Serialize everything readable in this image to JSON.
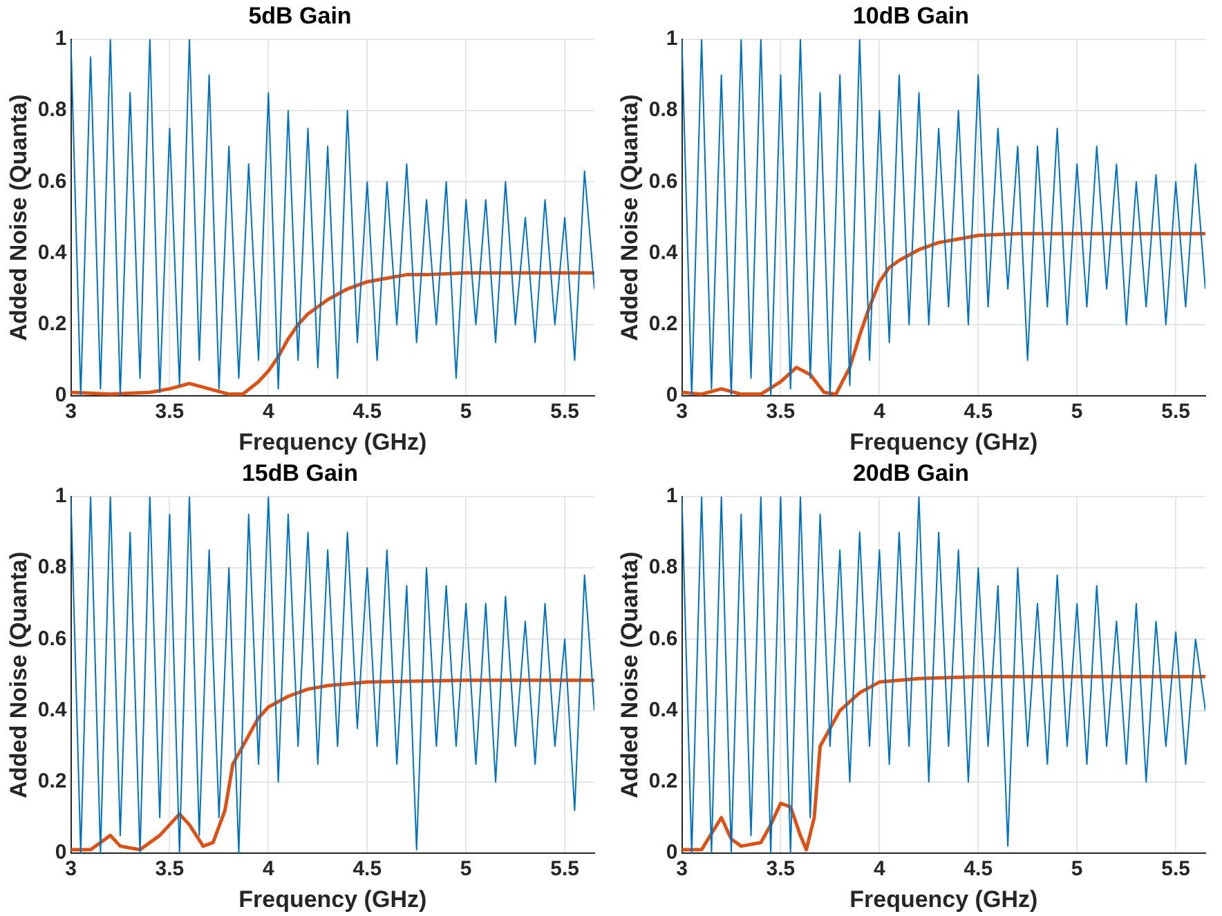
{
  "chart_data": [
    {
      "type": "line",
      "title": "5dB Gain",
      "xlabel": "Frequency (GHz)",
      "ylabel": "Added Noise (Quanta)",
      "xlim": [
        3,
        5.65
      ],
      "ylim": [
        0,
        1
      ],
      "xticks": [
        3,
        3.5,
        4,
        4.5,
        5,
        5.5
      ],
      "yticks": [
        0,
        0.2,
        0.4,
        0.6,
        0.8,
        1
      ],
      "grid": true,
      "legend": false,
      "x": [
        3,
        3.05,
        3.1,
        3.15,
        3.2,
        3.25,
        3.3,
        3.35,
        3.4,
        3.45,
        3.5,
        3.55,
        3.6,
        3.65,
        3.7,
        3.75,
        3.8,
        3.85,
        3.9,
        3.95,
        4,
        4.05,
        4.1,
        4.15,
        4.2,
        4.25,
        4.3,
        4.35,
        4.4,
        4.45,
        4.5,
        4.55,
        4.6,
        4.65,
        4.7,
        4.75,
        4.8,
        4.85,
        4.9,
        4.95,
        5,
        5.05,
        5.1,
        5.15,
        5.2,
        5.25,
        5.3,
        5.35,
        5.4,
        5.45,
        5.5,
        5.55,
        5.6,
        5.65
      ],
      "series": [
        {
          "type": "line",
          "color": "#0072bd",
          "values": [
            1,
            0,
            0.95,
            0.02,
            1,
            0,
            0.85,
            0.05,
            1,
            0.01,
            0.75,
            0.03,
            1,
            0.1,
            0.9,
            0.02,
            0.7,
            0.05,
            0.65,
            0.1,
            0.85,
            0.02,
            0.8,
            0.1,
            0.75,
            0.08,
            0.7,
            0.05,
            0.8,
            0.15,
            0.6,
            0.1,
            0.6,
            0.2,
            0.65,
            0.15,
            0.55,
            0.2,
            0.6,
            0.05,
            0.55,
            0.2,
            0.55,
            0.15,
            0.6,
            0.2,
            0.5,
            0.15,
            0.55,
            0.2,
            0.5,
            0.1,
            0.63,
            0.3
          ]
        },
        {
          "type": "line",
          "color": "#d95319",
          "x": [
            3,
            3.2,
            3.4,
            3.5,
            3.6,
            3.7,
            3.8,
            3.87,
            3.95,
            4,
            4.05,
            4.1,
            4.15,
            4.2,
            4.3,
            4.4,
            4.5,
            4.6,
            4.7,
            4.8,
            5,
            5.2,
            5.4,
            5.65
          ],
          "values": [
            0.01,
            0.005,
            0.01,
            0.02,
            0.035,
            0.02,
            0.005,
            0.005,
            0.04,
            0.07,
            0.11,
            0.16,
            0.2,
            0.23,
            0.27,
            0.3,
            0.32,
            0.33,
            0.34,
            0.34,
            0.345,
            0.345,
            0.345,
            0.345
          ]
        }
      ]
    },
    {
      "type": "line",
      "title": "10dB Gain",
      "xlabel": "Frequency (GHz)",
      "ylabel": "Added Noise (Quanta)",
      "xlim": [
        3,
        5.65
      ],
      "ylim": [
        0,
        1
      ],
      "xticks": [
        3,
        3.5,
        4,
        4.5,
        5,
        5.5
      ],
      "yticks": [
        0,
        0.2,
        0.4,
        0.6,
        0.8,
        1
      ],
      "grid": true,
      "legend": false,
      "x": [
        3,
        3.05,
        3.1,
        3.15,
        3.2,
        3.25,
        3.3,
        3.35,
        3.4,
        3.45,
        3.5,
        3.55,
        3.6,
        3.65,
        3.7,
        3.75,
        3.8,
        3.85,
        3.9,
        3.95,
        4,
        4.05,
        4.1,
        4.15,
        4.2,
        4.25,
        4.3,
        4.35,
        4.4,
        4.45,
        4.5,
        4.55,
        4.6,
        4.65,
        4.7,
        4.75,
        4.8,
        4.85,
        4.9,
        4.95,
        5,
        5.05,
        5.1,
        5.15,
        5.2,
        5.25,
        5.3,
        5.35,
        5.4,
        5.45,
        5.5,
        5.55,
        5.6,
        5.65
      ],
      "series": [
        {
          "type": "line",
          "color": "#0072bd",
          "values": [
            1,
            0,
            1,
            0.02,
            0.9,
            0,
            1,
            0.05,
            1,
            0,
            0.9,
            0.02,
            1,
            0.05,
            0.85,
            0,
            0.9,
            0.03,
            1,
            0.1,
            0.8,
            0.15,
            0.9,
            0.2,
            0.85,
            0.2,
            0.75,
            0.25,
            0.8,
            0.2,
            0.9,
            0.25,
            0.75,
            0.3,
            0.7,
            0.1,
            0.7,
            0.25,
            0.75,
            0.2,
            0.65,
            0.25,
            0.7,
            0.3,
            0.65,
            0.2,
            0.6,
            0.25,
            0.62,
            0.2,
            0.6,
            0.25,
            0.65,
            0.3
          ]
        },
        {
          "type": "line",
          "color": "#d95319",
          "x": [
            3,
            3.1,
            3.2,
            3.3,
            3.4,
            3.5,
            3.58,
            3.65,
            3.72,
            3.78,
            3.85,
            3.9,
            3.95,
            4,
            4.05,
            4.1,
            4.2,
            4.3,
            4.4,
            4.5,
            4.7,
            5,
            5.3,
            5.65
          ],
          "values": [
            0.01,
            0.005,
            0.02,
            0.005,
            0.005,
            0.04,
            0.08,
            0.06,
            0.01,
            0.005,
            0.08,
            0.17,
            0.25,
            0.32,
            0.36,
            0.38,
            0.41,
            0.43,
            0.44,
            0.45,
            0.455,
            0.455,
            0.455,
            0.455
          ]
        }
      ]
    },
    {
      "type": "line",
      "title": "15dB Gain",
      "xlabel": "Frequency (GHz)",
      "ylabel": "Added Noise (Quanta)",
      "xlim": [
        3,
        5.65
      ],
      "ylim": [
        0,
        1
      ],
      "xticks": [
        3,
        3.5,
        4,
        4.5,
        5,
        5.5
      ],
      "yticks": [
        0,
        0.2,
        0.4,
        0.6,
        0.8,
        1
      ],
      "grid": true,
      "legend": false,
      "x": [
        3,
        3.05,
        3.1,
        3.15,
        3.2,
        3.25,
        3.3,
        3.35,
        3.4,
        3.45,
        3.5,
        3.55,
        3.6,
        3.65,
        3.7,
        3.75,
        3.8,
        3.85,
        3.9,
        3.95,
        4,
        4.05,
        4.1,
        4.15,
        4.2,
        4.25,
        4.3,
        4.35,
        4.4,
        4.45,
        4.5,
        4.55,
        4.6,
        4.65,
        4.7,
        4.75,
        4.8,
        4.85,
        4.9,
        4.95,
        5,
        5.05,
        5.1,
        5.15,
        5.2,
        5.25,
        5.3,
        5.35,
        5.4,
        5.45,
        5.5,
        5.55,
        5.6,
        5.65
      ],
      "series": [
        {
          "type": "line",
          "color": "#0072bd",
          "values": [
            1,
            0,
            1,
            0,
            1,
            0.05,
            0.9,
            0,
            1,
            0.1,
            0.95,
            0,
            1,
            0.05,
            0.85,
            0.1,
            0.8,
            0,
            0.95,
            0.25,
            1,
            0.2,
            0.95,
            0.3,
            0.9,
            0.25,
            0.85,
            0.3,
            0.9,
            0.35,
            0.8,
            0.3,
            0.85,
            0.25,
            0.75,
            0.01,
            0.8,
            0.3,
            0.75,
            0.3,
            0.7,
            0.25,
            0.7,
            0.2,
            0.72,
            0.3,
            0.65,
            0.25,
            0.7,
            0.3,
            0.6,
            0.12,
            0.78,
            0.4
          ]
        },
        {
          "type": "line",
          "color": "#d95319",
          "x": [
            3,
            3.1,
            3.2,
            3.25,
            3.35,
            3.45,
            3.55,
            3.6,
            3.67,
            3.72,
            3.78,
            3.82,
            3.9,
            3.95,
            4,
            4.1,
            4.2,
            4.3,
            4.5,
            5,
            5.65
          ],
          "values": [
            0.01,
            0.01,
            0.05,
            0.02,
            0.01,
            0.05,
            0.11,
            0.08,
            0.02,
            0.03,
            0.12,
            0.25,
            0.33,
            0.38,
            0.41,
            0.44,
            0.46,
            0.47,
            0.48,
            0.485,
            0.485
          ]
        }
      ]
    },
    {
      "type": "line",
      "title": "20dB Gain",
      "xlabel": "Frequency (GHz)",
      "ylabel": "Added Noise (Quanta)",
      "xlim": [
        3,
        5.65
      ],
      "ylim": [
        0,
        1
      ],
      "xticks": [
        3,
        3.5,
        4,
        4.5,
        5,
        5.5
      ],
      "yticks": [
        0,
        0.2,
        0.4,
        0.6,
        0.8,
        1
      ],
      "grid": true,
      "legend": false,
      "x": [
        3,
        3.05,
        3.1,
        3.15,
        3.2,
        3.25,
        3.3,
        3.35,
        3.4,
        3.45,
        3.5,
        3.55,
        3.6,
        3.65,
        3.7,
        3.75,
        3.8,
        3.85,
        3.9,
        3.95,
        4,
        4.05,
        4.1,
        4.15,
        4.2,
        4.25,
        4.3,
        4.35,
        4.4,
        4.45,
        4.5,
        4.55,
        4.6,
        4.65,
        4.7,
        4.75,
        4.8,
        4.85,
        4.9,
        4.95,
        5,
        5.05,
        5.1,
        5.15,
        5.2,
        5.25,
        5.3,
        5.35,
        5.4,
        5.45,
        5.5,
        5.55,
        5.6,
        5.65
      ],
      "series": [
        {
          "type": "line",
          "color": "#0072bd",
          "values": [
            1,
            0,
            1,
            0,
            1,
            0,
            0.95,
            0.05,
            1,
            0,
            1,
            0,
            1,
            0.1,
            0.95,
            0.3,
            0.85,
            0.2,
            0.9,
            0.3,
            0.85,
            0.25,
            0.9,
            0.3,
            1,
            0.2,
            0.9,
            0.3,
            0.85,
            0.2,
            0.8,
            0.3,
            0.75,
            0.02,
            0.8,
            0.3,
            0.7,
            0.25,
            0.78,
            0.3,
            0.7,
            0.25,
            0.75,
            0.3,
            0.65,
            0.25,
            0.7,
            0.2,
            0.65,
            0.3,
            0.62,
            0.25,
            0.6,
            0.4
          ]
        },
        {
          "type": "line",
          "color": "#d95319",
          "x": [
            3,
            3.1,
            3.2,
            3.25,
            3.3,
            3.4,
            3.45,
            3.5,
            3.55,
            3.6,
            3.63,
            3.67,
            3.7,
            3.75,
            3.8,
            3.9,
            4,
            4.2,
            4.5,
            5.65
          ],
          "values": [
            0.01,
            0.01,
            0.1,
            0.04,
            0.02,
            0.03,
            0.08,
            0.14,
            0.13,
            0.05,
            0.01,
            0.1,
            0.3,
            0.35,
            0.4,
            0.45,
            0.48,
            0.49,
            0.495,
            0.495
          ]
        }
      ]
    }
  ]
}
